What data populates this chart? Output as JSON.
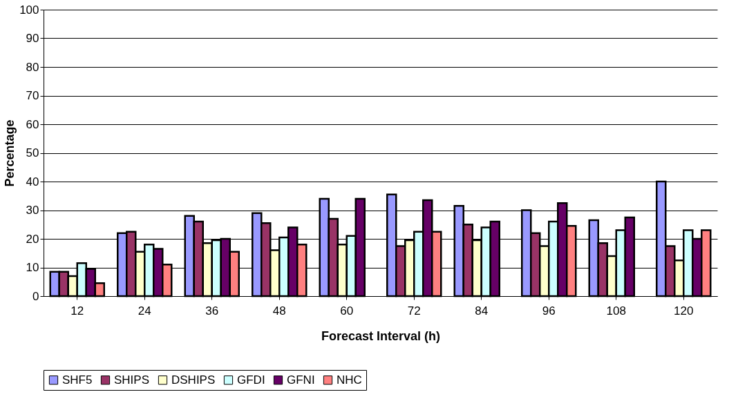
{
  "chart_data": {
    "type": "bar",
    "xlabel": "Forecast Interval (h)",
    "ylabel": "Percentage",
    "categories": [
      "12",
      "24",
      "36",
      "48",
      "60",
      "72",
      "84",
      "96",
      "108",
      "120"
    ],
    "series": [
      {
        "name": "SHF5",
        "color": "#9999ff",
        "values": [
          8.5,
          22,
          28,
          29,
          34,
          35.5,
          31.5,
          30,
          26.5,
          40
        ]
      },
      {
        "name": "SHIPS",
        "color": "#993366",
        "values": [
          8.5,
          22.5,
          26,
          25.5,
          27,
          17.5,
          25,
          22,
          18.5,
          17.5
        ]
      },
      {
        "name": "DSHIPS",
        "color": "#ffffcc",
        "values": [
          7,
          15.5,
          18.5,
          16,
          18,
          19.5,
          19.5,
          17.5,
          14,
          12.5
        ]
      },
      {
        "name": "GFDI",
        "color": "#ccffff",
        "values": [
          11.5,
          18,
          19.5,
          20.5,
          21,
          22.5,
          24,
          26,
          23,
          23
        ]
      },
      {
        "name": "GFNI",
        "color": "#660066",
        "values": [
          9.5,
          16.5,
          20,
          24,
          34,
          33.5,
          26,
          32.5,
          27.5,
          20
        ]
      },
      {
        "name": "NHC",
        "color": "#ff8080",
        "values": [
          4.5,
          11,
          15.5,
          18,
          null,
          22.5,
          null,
          24.5,
          null,
          23
        ]
      }
    ],
    "ylim": [
      0,
      100
    ],
    "yticks": [
      0,
      10,
      20,
      30,
      40,
      50,
      60,
      70,
      80,
      90,
      100
    ],
    "grid": "y",
    "legend": "bottom"
  }
}
